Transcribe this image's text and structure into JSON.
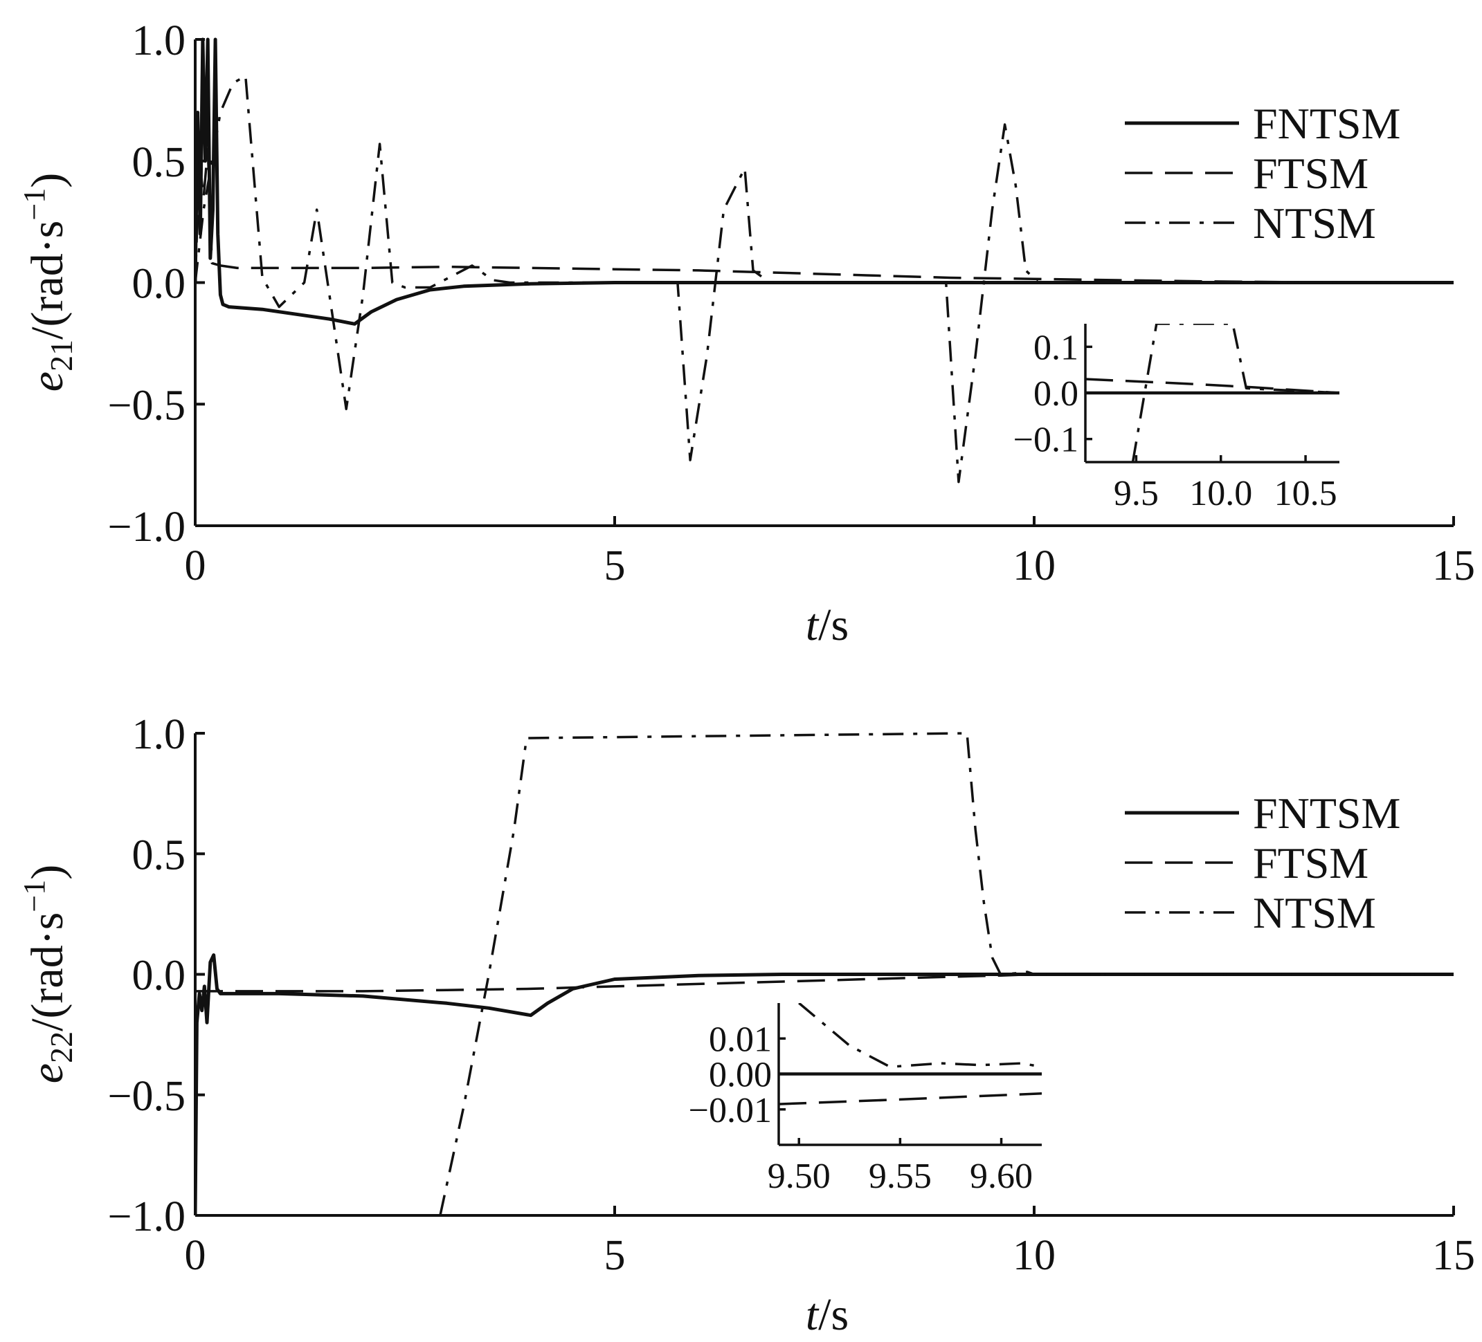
{
  "chart_data": [
    {
      "type": "line",
      "ylabel_main": "e",
      "ylabel_sub": "21",
      "ylabel_rest": "/(rad·s",
      "ylabel_sup": "−1",
      "ylabel_close": ")",
      "xlabel_var": "t",
      "xlabel_unit": "/s",
      "xlim": [
        0,
        15
      ],
      "ylim": [
        -1.0,
        1.0
      ],
      "x_ticks": [
        "0",
        "5",
        "10",
        "15"
      ],
      "y_ticks": [
        "−1.0",
        "−0.5",
        "0.0",
        "0.5",
        "1.0"
      ],
      "legend": [
        "FNTSM",
        "FTSM",
        "NTSM"
      ],
      "legend_position": "top-right",
      "series": [
        {
          "name": "FNTSM",
          "style": "solid",
          "x": [
            0,
            0.03,
            0.06,
            0.09,
            0.12,
            0.15,
            0.18,
            0.21,
            0.24,
            0.27,
            0.3,
            0.33,
            0.4,
            0.8,
            1.2,
            1.6,
            1.9,
            2.1,
            2.4,
            2.8,
            3.2,
            3.6,
            4.0,
            5.0,
            6.0,
            8.0,
            10.0,
            12.0,
            15.0
          ],
          "y": [
            0,
            0.7,
            0.2,
            1.0,
            0.5,
            1.0,
            0.1,
            0.3,
            1.0,
            0.2,
            -0.05,
            -0.09,
            -0.1,
            -0.11,
            -0.13,
            -0.15,
            -0.17,
            -0.12,
            -0.07,
            -0.03,
            -0.015,
            -0.01,
            -0.005,
            0,
            0,
            0,
            0,
            0,
            0
          ]
        },
        {
          "name": "FTSM",
          "style": "dashed",
          "x": [
            0,
            0.05,
            0.1,
            0.15,
            0.2,
            0.3,
            0.5,
            1.0,
            2.0,
            3.0,
            4.0,
            5.0,
            6.0,
            7.0,
            8.0,
            9.0,
            10.0,
            11.0,
            12.0,
            13.0,
            15.0
          ],
          "y": [
            0,
            0.5,
            0.35,
            0.55,
            0.08,
            0.07,
            0.06,
            0.06,
            0.06,
            0.065,
            0.06,
            0.055,
            0.05,
            0.04,
            0.03,
            0.02,
            0.015,
            0.01,
            0.005,
            0.002,
            0
          ]
        },
        {
          "name": "NTSM",
          "style": "dashdot",
          "x": [
            0,
            0.1,
            0.2,
            0.3,
            0.45,
            0.6,
            0.8,
            1.0,
            1.3,
            1.45,
            1.6,
            1.8,
            2.0,
            2.2,
            2.35,
            2.5,
            2.8,
            3.3,
            3.55,
            3.75,
            4.5,
            5.4,
            5.75,
            5.9,
            6.1,
            6.3,
            6.55,
            6.65,
            6.85,
            7.2,
            8.0,
            8.95,
            9.1,
            9.3,
            9.5,
            9.65,
            9.78,
            9.9,
            10.05,
            10.3,
            11.0,
            15.0
          ],
          "y": [
            0,
            0.3,
            0.5,
            0.7,
            0.82,
            0.85,
            0.02,
            -0.1,
            0.0,
            0.3,
            -0.05,
            -0.52,
            -0.05,
            0.57,
            0.0,
            -0.02,
            -0.02,
            0.07,
            0.01,
            0.0,
            0.0,
            0.0,
            0.0,
            -0.73,
            -0.3,
            0.3,
            0.47,
            0.05,
            0.0,
            0.0,
            0.0,
            0.0,
            -0.82,
            -0.3,
            0.3,
            0.65,
            0.4,
            0.05,
            0.0,
            0.0,
            0.0,
            0.0
          ]
        }
      ],
      "inset": {
        "xlim": [
          9.2,
          10.7
        ],
        "ylim": [
          -0.15,
          0.15
        ],
        "x_ticks": [
          "9.5",
          "10.0",
          "10.5"
        ],
        "y_ticks": [
          "−0.1",
          "0.0",
          "0.1"
        ],
        "series": [
          {
            "name": "FNTSM",
            "style": "solid",
            "x": [
              9.2,
              10.7
            ],
            "y": [
              0,
              0
            ]
          },
          {
            "name": "FTSM",
            "style": "dashed",
            "x": [
              9.2,
              9.8,
              10.2,
              10.7
            ],
            "y": [
              0.03,
              0.02,
              0.012,
              0.0
            ]
          },
          {
            "name": "NTSM",
            "style": "dashdot",
            "x": [
              9.48,
              9.62,
              10.07,
              10.15,
              10.7
            ],
            "y": [
              -0.15,
              0.15,
              0.15,
              0.01,
              0.0
            ]
          }
        ]
      }
    },
    {
      "type": "line",
      "ylabel_main": "e",
      "ylabel_sub": "22",
      "ylabel_rest": "/(rad·s",
      "ylabel_sup": "−1",
      "ylabel_close": ")",
      "xlabel_var": "t",
      "xlabel_unit": "/s",
      "xlim": [
        0,
        15
      ],
      "ylim": [
        -1.0,
        1.0
      ],
      "x_ticks": [
        "0",
        "5",
        "10",
        "15"
      ],
      "y_ticks": [
        "−1.0",
        "−0.5",
        "0.0",
        "0.5",
        "1.0"
      ],
      "legend": [
        "FNTSM",
        "FTSM",
        "NTSM"
      ],
      "legend_position": "top-right",
      "series": [
        {
          "name": "FNTSM",
          "style": "solid",
          "x": [
            0,
            0.02,
            0.05,
            0.08,
            0.11,
            0.14,
            0.18,
            0.22,
            0.26,
            0.3,
            0.35,
            1.0,
            2.0,
            3.0,
            3.5,
            4.0,
            4.2,
            4.5,
            5.0,
            6.0,
            7.0,
            8.0,
            10.0,
            15.0
          ],
          "y": [
            -1.0,
            -0.2,
            -0.08,
            -0.15,
            -0.05,
            -0.2,
            0.05,
            0.08,
            -0.06,
            -0.08,
            -0.08,
            -0.08,
            -0.09,
            -0.12,
            -0.14,
            -0.17,
            -0.12,
            -0.06,
            -0.02,
            -0.005,
            0,
            0,
            0,
            0
          ]
        },
        {
          "name": "FTSM",
          "style": "dashed",
          "x": [
            0,
            0.3,
            1.0,
            2.0,
            3.0,
            4.0,
            5.0,
            6.0,
            7.0,
            8.0,
            9.0,
            9.6,
            10.0,
            11.0,
            15.0
          ],
          "y": [
            -0.07,
            -0.07,
            -0.07,
            -0.07,
            -0.065,
            -0.06,
            -0.05,
            -0.04,
            -0.03,
            -0.02,
            -0.01,
            -0.005,
            0.0,
            0.0,
            0.0
          ]
        },
        {
          "name": "NTSM",
          "style": "dashdot",
          "x": [
            2.92,
            3.2,
            3.5,
            3.8,
            3.95,
            9.2,
            9.3,
            9.4,
            9.5,
            9.6,
            9.8,
            9.92,
            10.0,
            10.2,
            15.0
          ],
          "y": [
            -1.0,
            -0.55,
            0.0,
            0.6,
            0.98,
            1.0,
            0.6,
            0.3,
            0.07,
            0.0,
            0.005,
            0.01,
            0.0,
            0.0,
            0.0
          ]
        }
      ],
      "inset": {
        "xlim": [
          9.49,
          9.62
        ],
        "ylim": [
          -0.02,
          0.02
        ],
        "x_ticks": [
          "9.50",
          "9.55",
          "9.60"
        ],
        "y_ticks": [
          "−0.01",
          "0.00",
          "0.01"
        ],
        "series": [
          {
            "name": "FNTSM",
            "style": "solid",
            "x": [
              9.49,
              9.62
            ],
            "y": [
              0,
              0
            ]
          },
          {
            "name": "FTSM",
            "style": "dashed",
            "x": [
              9.49,
              9.55,
              9.62
            ],
            "y": [
              -0.0085,
              -0.0072,
              -0.0055
            ]
          },
          {
            "name": "NTSM",
            "style": "dashdot",
            "x": [
              9.5,
              9.525,
              9.545,
              9.57,
              9.59,
              9.61,
              9.62
            ],
            "y": [
              0.02,
              0.008,
              0.002,
              0.003,
              0.0025,
              0.003,
              0.002
            ]
          }
        ]
      }
    }
  ]
}
